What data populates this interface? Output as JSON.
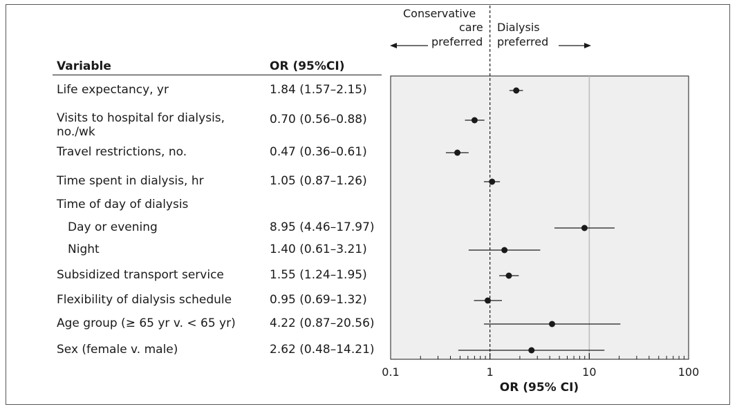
{
  "table": {
    "header_variable": "Variable",
    "header_or": "OR (95%CI)",
    "rows": [
      {
        "label": "Life expectancy, yr",
        "or_ci": "1.84 (1.57–2.15)"
      },
      {
        "label": "Visits to hospital for dialysis, no./wk",
        "or_ci": "0.70 (0.56–0.88)"
      },
      {
        "label": "Travel restrictions, no.",
        "or_ci": "0.47 (0.36–0.61)"
      },
      {
        "label": "Time spent in dialysis, hr",
        "or_ci": "1.05 (0.87–1.26)"
      },
      {
        "label": "Time of day of dialysis",
        "or_ci": ""
      },
      {
        "label": "Day or evening",
        "or_ci": "8.95 (4.46–17.97)"
      },
      {
        "label": "Night",
        "or_ci": "1.40 (0.61–3.21)"
      },
      {
        "label": "Subsidized transport service",
        "or_ci": "1.55 (1.24–1.95)"
      },
      {
        "label": "Flexibility of dialysis schedule",
        "or_ci": "0.95 (0.69–1.32)"
      },
      {
        "label": "Age group (≥ 65 yr v. < 65 yr)",
        "or_ci": "4.22 (0.87–20.56)"
      },
      {
        "label": "Sex (female v. male)",
        "or_ci": "2.62 (0.48–14.21)"
      }
    ]
  },
  "annotations": {
    "left_line1": "Conservative",
    "left_line2": "care",
    "left_line3": "preferred",
    "right_line1": "Dialysis",
    "right_line2": "preferred"
  },
  "colors": {
    "panel_bg": "#efefef",
    "point": "#1a1a1a",
    "reference_line_10": "#bdbdbd"
  },
  "chart_data": {
    "type": "scatter",
    "subtype": "forest-plot",
    "x_scale": "log",
    "xlim": [
      0.1,
      100
    ],
    "xlabel": "OR (95% CI)",
    "x_ticks": [
      0.1,
      1,
      10,
      100
    ],
    "x_tick_labels": [
      "0.1",
      "1",
      "10",
      "100"
    ],
    "reference_line": 1,
    "grid_lines": [
      10
    ],
    "points": [
      {
        "label": "Life expectancy, yr",
        "or": 1.84,
        "lo": 1.57,
        "hi": 2.15
      },
      {
        "label": "Visits to hospital for dialysis, no./wk",
        "or": 0.7,
        "lo": 0.56,
        "hi": 0.88
      },
      {
        "label": "Travel restrictions, no.",
        "or": 0.47,
        "lo": 0.36,
        "hi": 0.61
      },
      {
        "label": "Time spent in dialysis, hr",
        "or": 1.05,
        "lo": 0.87,
        "hi": 1.26
      },
      {
        "label": "Day or evening",
        "or": 8.95,
        "lo": 4.46,
        "hi": 17.97
      },
      {
        "label": "Night",
        "or": 1.4,
        "lo": 0.61,
        "hi": 3.21
      },
      {
        "label": "Subsidized transport service",
        "or": 1.55,
        "lo": 1.24,
        "hi": 1.95
      },
      {
        "label": "Flexibility of dialysis schedule",
        "or": 0.95,
        "lo": 0.69,
        "hi": 1.32
      },
      {
        "label": "Age group (≥ 65 yr v. < 65 yr)",
        "or": 4.22,
        "lo": 0.87,
        "hi": 20.56
      },
      {
        "label": "Sex (female v. male)",
        "or": 2.62,
        "lo": 0.48,
        "hi": 14.21
      }
    ]
  }
}
